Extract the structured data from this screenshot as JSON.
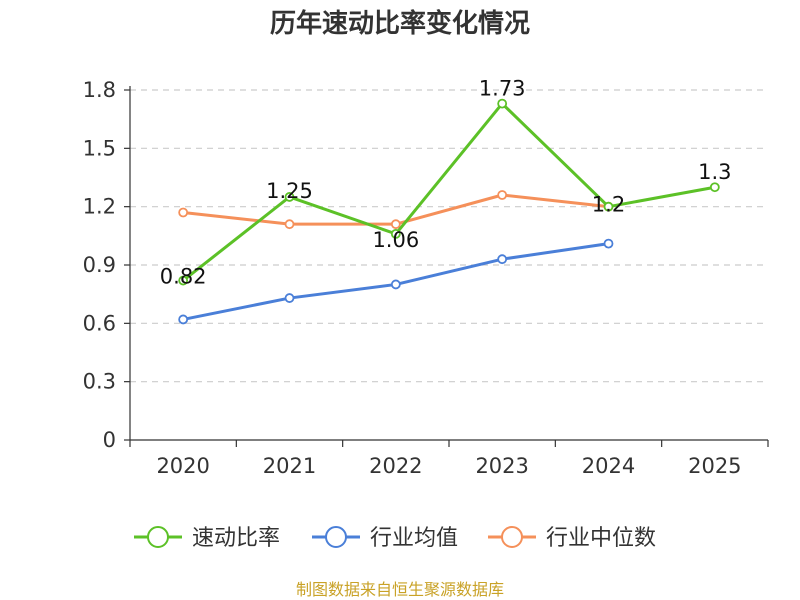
{
  "chart_data": {
    "type": "line",
    "title": "历年速动比率变化情况",
    "categories": [
      "2020",
      "2021",
      "2022",
      "2023",
      "2024",
      "2025"
    ],
    "ylim": [
      0,
      1.8
    ],
    "yticks": [
      "0",
      "0.3",
      "0.6",
      "0.9",
      "1.2",
      "1.5",
      "1.8"
    ],
    "grid": true,
    "legend_position": "bottom",
    "series": [
      {
        "name": "速动比率",
        "color": "#5cc127",
        "values": [
          0.82,
          1.25,
          1.06,
          1.73,
          1.2,
          1.3
        ],
        "labels": [
          "0.82",
          "1.25",
          "1.06",
          "1.73",
          "1.2",
          "1.3"
        ]
      },
      {
        "name": "行业均值",
        "color": "#4a7fd8",
        "values": [
          0.62,
          0.73,
          0.8,
          0.93,
          1.01,
          null
        ],
        "labels": null
      },
      {
        "name": "行业中位数",
        "color": "#f5905a",
        "values": [
          1.17,
          1.11,
          1.11,
          1.26,
          1.2,
          null
        ],
        "labels": null
      }
    ],
    "source": "制图数据来自恒生聚源数据库"
  }
}
